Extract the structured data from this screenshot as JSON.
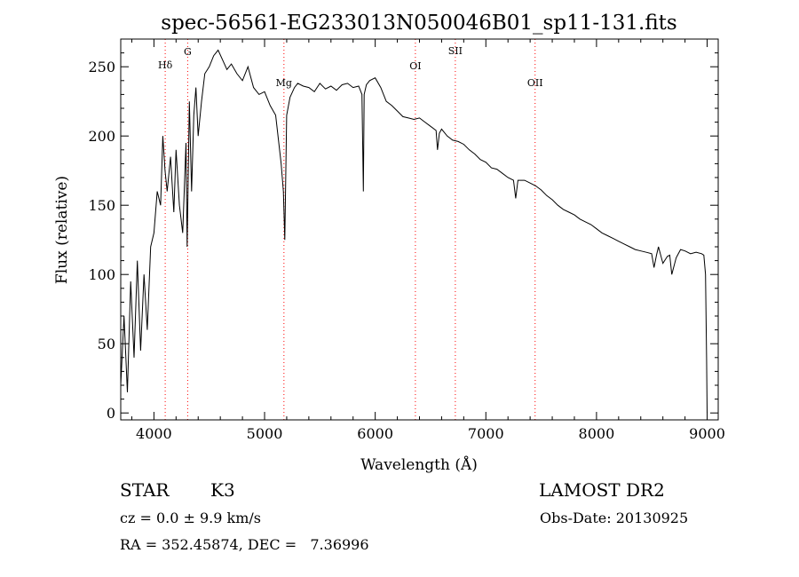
{
  "chart_data": {
    "type": "line",
    "title": "spec-56561-EG233013N050046B01_sp11-131.fits",
    "xlabel": "Wavelength (Å)",
    "ylabel": "Flux (relative)",
    "xlim": [
      3700,
      9100
    ],
    "ylim": [
      -5,
      270
    ],
    "x_ticks": [
      4000,
      5000,
      6000,
      7000,
      8000,
      9000
    ],
    "y_ticks": [
      0,
      50,
      100,
      150,
      200,
      250
    ],
    "grid": false,
    "series": [
      {
        "x": [
          3700,
          3730,
          3760,
          3790,
          3820,
          3850,
          3880,
          3910,
          3940,
          3970,
          4000,
          4030,
          4060,
          4080,
          4100,
          4120,
          4150,
          4180,
          4200,
          4230,
          4260,
          4290,
          4300,
          4320,
          4340,
          4360,
          4380,
          4400,
          4430,
          4460,
          4500,
          4540,
          4580,
          4620,
          4660,
          4700,
          4750,
          4800,
          4850,
          4900,
          4950,
          5000,
          5050,
          5100,
          5150,
          5170,
          5183,
          5200,
          5230,
          5270,
          5300,
          5350,
          5400,
          5450,
          5500,
          5550,
          5600,
          5650,
          5700,
          5750,
          5800,
          5850,
          5880,
          5893,
          5900,
          5920,
          5950,
          6000,
          6050,
          6100,
          6150,
          6200,
          6250,
          6300,
          6350,
          6400,
          6450,
          6500,
          6550,
          6563,
          6580,
          6600,
          6650,
          6700,
          6750,
          6800,
          6850,
          6900,
          6950,
          7000,
          7050,
          7100,
          7150,
          7200,
          7250,
          7270,
          7290,
          7350,
          7400,
          7450,
          7500,
          7550,
          7600,
          7650,
          7700,
          7750,
          7800,
          7850,
          7900,
          7950,
          8000,
          8050,
          8100,
          8150,
          8200,
          8250,
          8300,
          8350,
          8400,
          8450,
          8498,
          8520,
          8542,
          8560,
          8600,
          8640,
          8662,
          8680,
          8720,
          8760,
          8800,
          8850,
          8900,
          8950,
          8970,
          8985,
          8995,
          9000
        ],
        "y": [
          20,
          70,
          15,
          95,
          40,
          110,
          45,
          100,
          60,
          120,
          130,
          160,
          150,
          200,
          175,
          160,
          185,
          145,
          190,
          150,
          130,
          195,
          120,
          225,
          160,
          215,
          235,
          200,
          225,
          245,
          250,
          258,
          262,
          255,
          248,
          252,
          245,
          240,
          250,
          235,
          230,
          232,
          222,
          215,
          180,
          160,
          125,
          215,
          228,
          235,
          238,
          236,
          235,
          232,
          238,
          234,
          236,
          233,
          237,
          238,
          235,
          236,
          230,
          160,
          230,
          237,
          240,
          242,
          235,
          225,
          222,
          218,
          214,
          213,
          212,
          213,
          210,
          207,
          204,
          190,
          202,
          205,
          200,
          197,
          196,
          194,
          190,
          187,
          183,
          181,
          177,
          176,
          173,
          170,
          168,
          155,
          168,
          168,
          166,
          164,
          161,
          157,
          154,
          150,
          147,
          145,
          143,
          140,
          138,
          136,
          133,
          130,
          128,
          126,
          124,
          122,
          120,
          118,
          117,
          116,
          115,
          105,
          114,
          120,
          108,
          113,
          114,
          100,
          112,
          118,
          117,
          115,
          116,
          115,
          114,
          100,
          40,
          0
        ]
      }
    ],
    "line_markers": [
      {
        "label": "Hδ",
        "x": 4102
      },
      {
        "label": "G",
        "x": 4305
      },
      {
        "label": "Mg",
        "x": 5175
      },
      {
        "label": "OI",
        "x": 6363
      },
      {
        "label": "SII",
        "x": 6724
      },
      {
        "label": "OII",
        "x": 7445
      }
    ],
    "marker_color": "#ff0000"
  },
  "info": {
    "object_type": "STAR",
    "subclass": "K3",
    "survey": "LAMOST DR2",
    "redshift": "cz = 0.0 ± 9.9 km/s",
    "obs_date": "Obs-Date: 20130925",
    "coords": "RA = 352.45874, DEC =   7.36996"
  }
}
